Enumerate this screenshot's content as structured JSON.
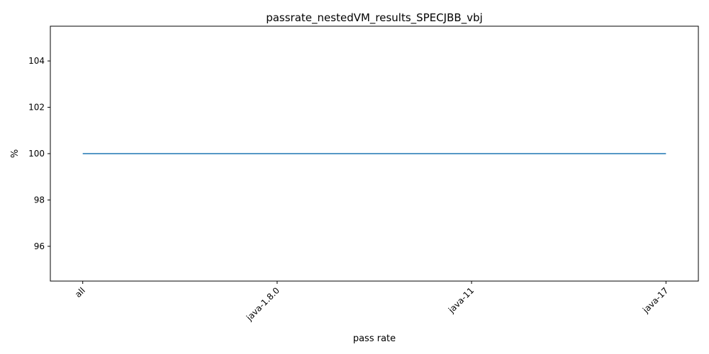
{
  "chart_data": {
    "type": "line",
    "title": "passrate_nestedVM_results_SPECJBB_vbj",
    "xlabel": "pass rate",
    "ylabel": "%",
    "categories": [
      "all",
      "java-1.8.0",
      "java-11",
      "java-17"
    ],
    "series": [
      {
        "values": [
          100,
          100,
          100,
          100
        ],
        "color": "#1f77b4"
      }
    ],
    "ylim": [
      94.5,
      105.5
    ],
    "yticks": [
      96,
      98,
      100,
      102,
      104
    ],
    "grid": false,
    "x_tick_rotation": 45
  }
}
